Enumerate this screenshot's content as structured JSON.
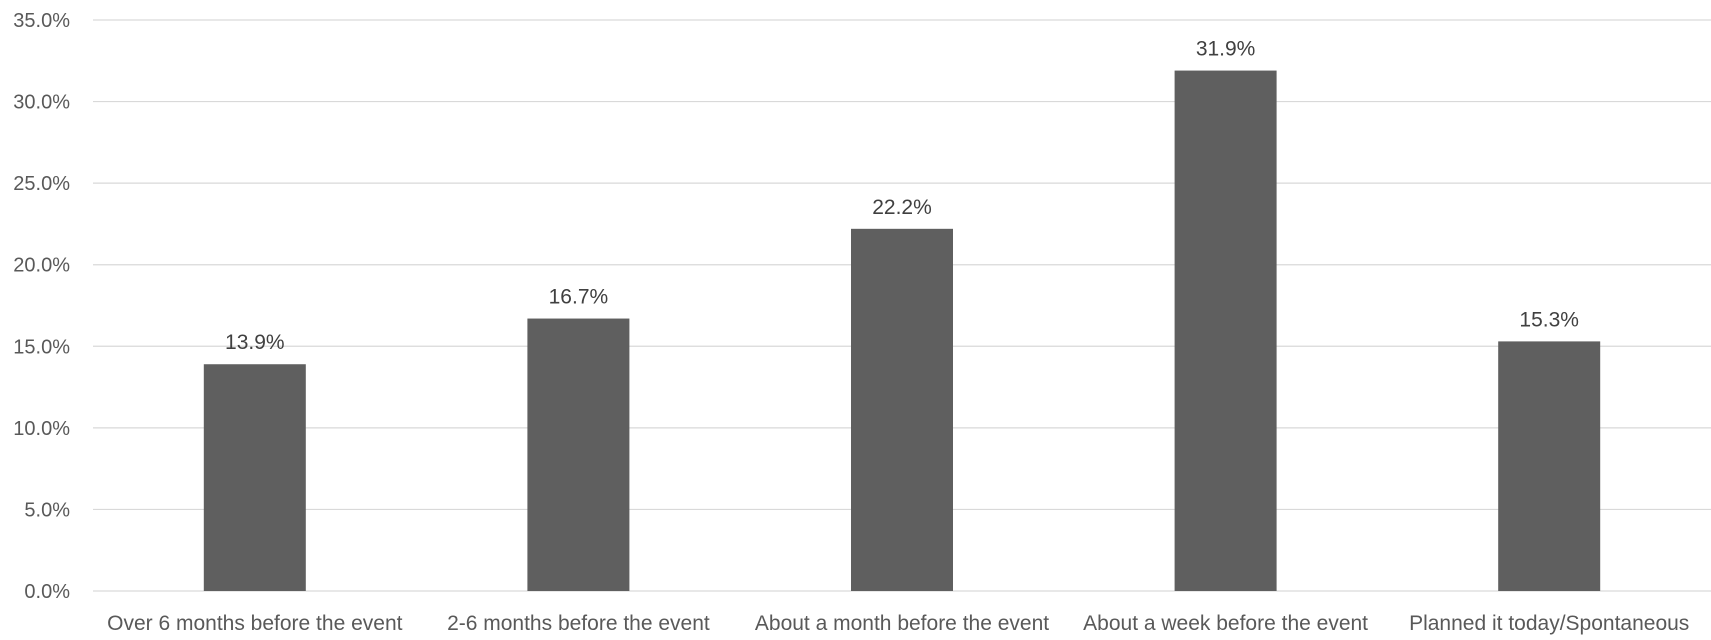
{
  "chart_data": {
    "type": "bar",
    "categories": [
      "Over 6 months before the event",
      "2-6 months before the event",
      "About a month before the event",
      "About a week before the event",
      "Planned it today/Spontaneous"
    ],
    "values": [
      13.9,
      16.7,
      22.2,
      31.9,
      15.3
    ],
    "data_labels": [
      "13.9%",
      "16.7%",
      "22.2%",
      "31.9%",
      "15.3%"
    ],
    "ylim": [
      0,
      35
    ],
    "y_ticks": [
      0,
      5,
      10,
      15,
      20,
      25,
      30,
      35
    ],
    "y_tick_labels": [
      "0.0%",
      "5.0%",
      "10.0%",
      "15.0%",
      "20.0%",
      "25.0%",
      "30.0%",
      "35.0%"
    ],
    "title": "",
    "xlabel": "",
    "ylabel": "",
    "grid": "horizontal",
    "legend": "none",
    "bar_color": "#5f5f5f",
    "grid_color": "#d9d9d9"
  }
}
